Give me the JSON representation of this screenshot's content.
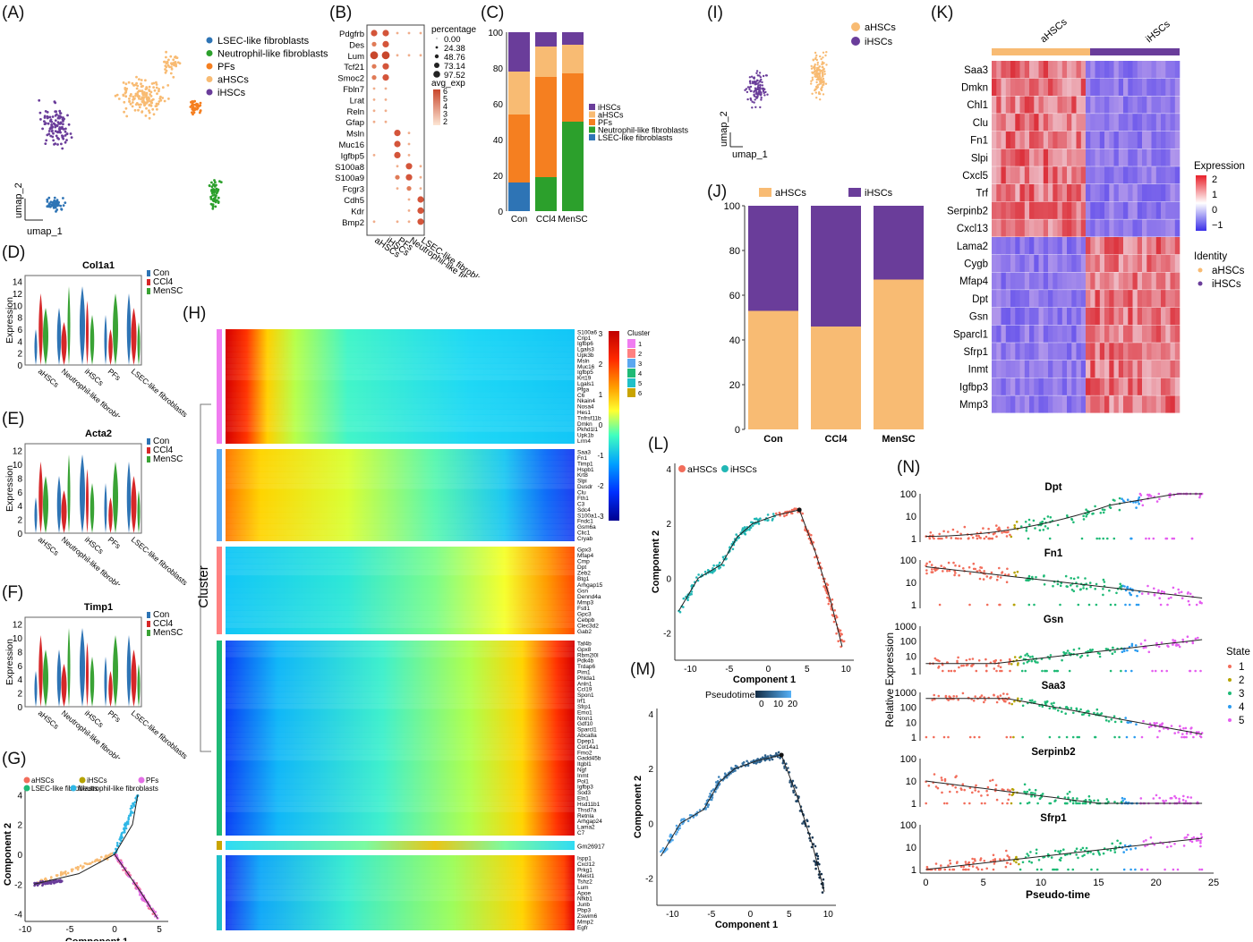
{
  "panel_labels": {
    "A": "(A)",
    "B": "(B)",
    "C": "(C)",
    "D": "(D)",
    "E": "(E)",
    "F": "(F)",
    "G": "(G)",
    "H": "(H)",
    "I": "(I)",
    "J": "(J)",
    "K": "(K)",
    "L": "(L)",
    "M": "(M)",
    "N": "(N)"
  },
  "colors": {
    "LSEC": "#2e74b5",
    "Neut": "#2ca02c",
    "PF": "#f57f20",
    "aHSC": "#f8bb73",
    "iHSC": "#6a3d9a",
    "Con": "#2e74b5",
    "CCl4": "#d62728",
    "MenSC": "#3aa335",
    "state1": "#f26d5b",
    "state2": "#b5a300",
    "state3": "#1fba76",
    "state4": "#2b9cf0",
    "state5": "#e55ef0"
  },
  "chart_data": [
    {
      "id": "A",
      "type": "scatter",
      "xlabel": "umap_1",
      "ylabel": "umap_2",
      "legend": [
        "LSEC-like fibroblasts",
        "Neutrophil-like fibroblasts",
        "PFs",
        "aHSCs",
        "iHSCs"
      ]
    },
    {
      "id": "B",
      "type": "scatter",
      "genes": [
        "Pdgfrb",
        "Des",
        "Lum",
        "Tcf21",
        "Smoc2",
        "Fbln7",
        "Lrat",
        "Reln",
        "Gfap",
        "Msln",
        "Muc16",
        "Igfbp5",
        "S100a8",
        "S100a9",
        "Fcgr3",
        "Cdh5",
        "Kdr",
        "Bmp2"
      ],
      "groups": [
        "aHSCs",
        "iHSCs",
        "PFs",
        "Neutrophil-like fibroblasts",
        "LSEC-like fibroblasts"
      ],
      "size_title": "percentage",
      "size_legend": [
        "0.00",
        "24.38",
        "48.76",
        "73.14",
        "97.52"
      ],
      "color_title": "avg_exp",
      "color_ticks": [
        "6",
        "5",
        "4",
        "3",
        "2"
      ]
    },
    {
      "id": "C",
      "type": "bar",
      "categories": [
        "Con",
        "CCl4",
        "MenSC"
      ],
      "ylim": [
        0,
        100
      ],
      "yticks": [
        "0",
        "20",
        "40",
        "60",
        "80",
        "100"
      ],
      "legend": [
        "iHSCs",
        "aHSCs",
        "PFs",
        "Neutrophil-like fibroblasts",
        "LSEC-like fibroblasts"
      ],
      "series": [
        {
          "name": "LSEC-like fibroblasts",
          "values": [
            16,
            0,
            0
          ]
        },
        {
          "name": "Neutrophil-like fibroblasts",
          "values": [
            0,
            19,
            50
          ]
        },
        {
          "name": "PFs",
          "values": [
            38,
            56,
            27
          ]
        },
        {
          "name": "aHSCs",
          "values": [
            24,
            17,
            16
          ]
        },
        {
          "name": "iHSCs",
          "values": [
            22,
            8,
            7
          ]
        }
      ]
    },
    {
      "id": "D",
      "type": "violin",
      "title": "Col1a1",
      "ylabel": "Expression",
      "yticks": [
        "0",
        "2",
        "4",
        "6",
        "8",
        "10",
        "12",
        "14"
      ],
      "categories": [
        "aHSCs",
        "Neutrophil-like fibroblasts",
        "iHSCs",
        "PFs",
        "LSEC-like fibroblasts"
      ],
      "legend": [
        "Con",
        "CCl4",
        "MenSC"
      ]
    },
    {
      "id": "E",
      "type": "violin",
      "title": "Acta2",
      "ylabel": "Expression",
      "yticks": [
        "0",
        "2",
        "4",
        "6",
        "8",
        "10",
        "12"
      ],
      "categories": [
        "aHSCs",
        "Neutrophil-like fibroblasts",
        "iHSCs",
        "PFs",
        "LSEC-like fibroblasts"
      ],
      "legend": [
        "Con",
        "CCl4",
        "MenSC"
      ]
    },
    {
      "id": "F",
      "type": "violin",
      "title": "Timp1",
      "ylabel": "Expression",
      "yticks": [
        "0",
        "2",
        "4",
        "6",
        "8",
        "10",
        "12"
      ],
      "categories": [
        "aHSCs",
        "Neutrophil-like fibroblasts",
        "iHSCs",
        "PFs",
        "LSEC-like fibroblasts"
      ],
      "legend": [
        "Con",
        "CCl4",
        "MenSC"
      ]
    },
    {
      "id": "G",
      "type": "scatter",
      "xlabel": "Component 1",
      "ylabel": "Component 2",
      "xticks": [
        "-10",
        "-5",
        "0",
        "5"
      ],
      "yticks": [
        "-4",
        "-2",
        "0",
        "2",
        "4"
      ],
      "legend": [
        "aHSCs",
        "iHSCs",
        "PFs",
        "LSEC-like fibroblasts",
        "Neutrophil-like fibroblasts"
      ]
    },
    {
      "id": "H",
      "type": "heatmap",
      "ylabel": "Cluster",
      "legend_title": "Cluster",
      "legend_items": [
        "1",
        "2",
        "3",
        "4",
        "5",
        "6"
      ],
      "colorbar_ticks": [
        "3",
        "2",
        "1",
        "0",
        "-1",
        "-2",
        "-3"
      ],
      "gene_groups": [
        [
          "S100a6",
          "Crip1",
          "Igfbp6",
          "Lgals3",
          "Upk3b",
          "Msln",
          "Muc16",
          "Igfbp5",
          "Krt19",
          "Lgals1",
          "Pfga",
          "C6",
          "Nkain4",
          "Nosa4",
          "Hes1",
          "Tnfrsf11b",
          "Dmkn",
          "Pkhd1l1",
          "Upk1b",
          "Lrrn4"
        ],
        [
          "Saa3",
          "Fn1",
          "Timp1",
          "Hspb1",
          "Krt8",
          "Slpi",
          "Dusdr",
          "Clu",
          "Fth1",
          "C3",
          "Sdc4",
          "S100a1",
          "Fndc1",
          "Gsm6a",
          "Clic1",
          "Cryab"
        ],
        [
          "Gpx3",
          "Mfap4",
          "Cmp",
          "Dpt",
          "Zeb2",
          "Btg1",
          "Arhgap15",
          "Gsn",
          "Dennd4a",
          "Mmp3",
          "Fstl1",
          "Gpc3",
          "Cebpb",
          "Clec3d2",
          "Gab2"
        ],
        [
          "Taf4b",
          "Gpx8",
          "Rbm2l0l",
          "Pdk4b",
          "Trdap6",
          "Pim1",
          "Phlda1",
          "Anln1",
          "Ccl19",
          "Spon1",
          "Irf1",
          "Sfrp1",
          "Emo1",
          "Nrxn1",
          "Gdf10",
          "Sparcl1",
          "Abca8a",
          "Dpep1",
          "Col14a1",
          "Fmo2",
          "Gadd45b",
          "Itgbl1",
          "Ngf",
          "Inmt",
          "Pol1",
          "Igfbp3",
          "Sod3",
          "Eln1",
          "Hsd11b1",
          "Thsd7a",
          "Retnla",
          "Arhgap24",
          "Lama2",
          "C7"
        ],
        [
          "Gm26917"
        ],
        [
          "Ispp1",
          "Cxcl12",
          "Prkg1",
          "Meist1",
          "Tshz2",
          "Lum",
          "Apoe",
          "Nfkb1",
          "Junb",
          "Pbp3",
          "Zswim6",
          "Mmp2",
          "Egfr"
        ]
      ]
    },
    {
      "id": "I",
      "type": "scatter",
      "xlabel": "umap_1",
      "ylabel": "umap_2",
      "legend": [
        "aHSCs",
        "iHSCs"
      ]
    },
    {
      "id": "J",
      "type": "bar",
      "categories": [
        "Con",
        "CCl4",
        "MenSC"
      ],
      "ylim": [
        0,
        100
      ],
      "yticks": [
        "0",
        "20",
        "40",
        "60",
        "80",
        "100"
      ],
      "legend": [
        "aHSCs",
        "iHSCs"
      ],
      "series": [
        {
          "name": "aHSCs",
          "values": [
            53,
            46,
            67
          ]
        },
        {
          "name": "iHSCs",
          "values": [
            47,
            54,
            33
          ]
        }
      ]
    },
    {
      "id": "K",
      "type": "heatmap",
      "columns": [
        "aHSCs",
        "iHSCs"
      ],
      "genes": [
        "Saa3",
        "Dmkn",
        "Chl1",
        "Clu",
        "Fn1",
        "Slpi",
        "Cxcl5",
        "Trf",
        "Serpinb2",
        "Cxcl13",
        "Lama2",
        "Cygb",
        "Mfap4",
        "Dpt",
        "Gsn",
        "Sparcl1",
        "Sfrp1",
        "Inmt",
        "Igfbp3",
        "Mmp3"
      ],
      "legend_title": "Expression",
      "legend_ticks": [
        "2",
        "1",
        "0",
        "−1"
      ],
      "identity_title": "Identity",
      "identity_items": [
        "aHSCs",
        "iHSCs"
      ]
    },
    {
      "id": "L",
      "type": "scatter",
      "xlabel": "Component 1",
      "ylabel": "Component 2",
      "xticks": [
        "-10",
        "-5",
        "0",
        "5",
        "10"
      ],
      "yticks": [
        "-2",
        "0",
        "2",
        "4"
      ],
      "legend": [
        "aHSCs",
        "iHSCs"
      ]
    },
    {
      "id": "M",
      "type": "scatter",
      "xlabel": "Component 1",
      "ylabel": "Component 2",
      "xticks": [
        "-10",
        "-5",
        "0",
        "5",
        "10"
      ],
      "yticks": [
        "-2",
        "0",
        "2",
        "4"
      ],
      "legend_title": "Pseudotime",
      "legend_ticks": [
        "0",
        "10",
        "20"
      ]
    },
    {
      "id": "N",
      "type": "scatter",
      "xlabel": "Pseudo-time",
      "ylabel": "Relative Expression",
      "xticks": [
        "0",
        "5",
        "10",
        "15",
        "20",
        "25"
      ],
      "legend_title": "State",
      "legend_items": [
        "1",
        "2",
        "3",
        "4",
        "5"
      ],
      "facets": [
        {
          "title": "Dpt",
          "yticks": [
            "100",
            "10",
            "1"
          ]
        },
        {
          "title": "Fn1",
          "yticks": [
            "100",
            "10",
            "1"
          ]
        },
        {
          "title": "Gsn",
          "yticks": [
            "1000",
            "100",
            "10",
            "1"
          ]
        },
        {
          "title": "Saa3",
          "yticks": [
            "1000",
            "100",
            "10",
            "1"
          ]
        },
        {
          "title": "Serpinb2",
          "yticks": [
            "100",
            "10",
            "1"
          ]
        },
        {
          "title": "Sfrp1",
          "yticks": [
            "100",
            "10",
            "1"
          ]
        }
      ]
    }
  ]
}
